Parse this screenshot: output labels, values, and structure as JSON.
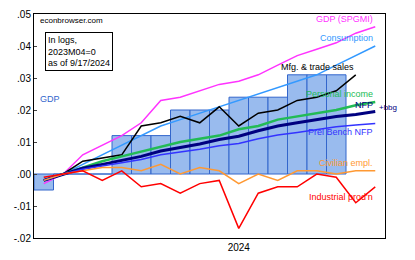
{
  "chart_data": {
    "type": "line",
    "annotations": [
      "econbrowser.com",
      "In logs,\n2023M04=0\nas of 9/17/2024",
      "+bbg"
    ],
    "categories": [
      null,
      null,
      null,
      null,
      null,
      null,
      null,
      null,
      null,
      null,
      "2024",
      null,
      null,
      null,
      null,
      null,
      null,
      null
    ],
    "series": [
      {
        "name": "GDP",
        "type": "bar",
        "color": "#99bbee",
        "values": [
          -0.005,
          0,
          0,
          0,
          0.012,
          0.012,
          0.012,
          0.02,
          0.02,
          0.02,
          0.024,
          0.024,
          0.024,
          0.031,
          0.031,
          0.031,
          null,
          null
        ]
      },
      {
        "name": "GDP (SPGMI)",
        "color": "#ff33ff",
        "values": [
          -0.003,
          0,
          0.006,
          0.009,
          0.012,
          0.016,
          0.023,
          0.024,
          0.026,
          0.028,
          0.029,
          0.031,
          0.034,
          0.037,
          0.039,
          0.041,
          0.044,
          0.046
        ]
      },
      {
        "name": "Consumption",
        "color": "#3399ff",
        "values": [
          -0.002,
          0,
          0.003,
          0.006,
          0.009,
          0.012,
          0.015,
          0.017,
          0.019,
          0.021,
          0.023,
          0.025,
          0.027,
          0.029,
          0.031,
          0.034,
          0.037,
          0.04
        ]
      },
      {
        "name": "Mfg. & trade sales",
        "color": "#000000",
        "values": [
          -0.002,
          0,
          0.004,
          0.005,
          0.006,
          0.015,
          0.016,
          0.018,
          0.016,
          0.021,
          0.015,
          0.019,
          0.02,
          0.023,
          0.024,
          0.026,
          0.031,
          null
        ]
      },
      {
        "name": "Personal income",
        "color": "#22bb55",
        "values": [
          -0.002,
          0,
          0.002,
          0.004,
          0.0055,
          0.007,
          0.0085,
          0.01,
          0.011,
          0.012,
          0.014,
          0.015,
          0.017,
          0.018,
          0.019,
          0.02,
          0.0215,
          0.0225
        ]
      },
      {
        "name": "NFP",
        "color": "#000080",
        "values": [
          -0.002,
          0,
          0.0018,
          0.003,
          0.0042,
          0.0055,
          0.0072,
          0.0082,
          0.0094,
          0.0108,
          0.0118,
          0.0135,
          0.015,
          0.016,
          0.0171,
          0.018,
          0.0186,
          0.0195
        ]
      },
      {
        "name": "Prel Bench NFP",
        "color": "#3333ff",
        "values": [
          -0.002,
          0,
          0.0015,
          0.0025,
          0.0035,
          0.0045,
          0.006,
          0.0068,
          0.0077,
          0.0088,
          0.0095,
          0.011,
          0.0122,
          0.013,
          0.014,
          0.0148,
          0.0153,
          0.0158
        ]
      },
      {
        "name": "Civilian empl.",
        "color": "#ff9933",
        "values": [
          -0.002,
          0,
          0.001,
          0.002,
          0.002,
          0.001,
          0.003,
          0.0,
          0.002,
          0.001,
          -0.003,
          0.0,
          -0.002,
          0.001,
          0.001,
          0.0,
          0.001,
          0.001
        ]
      },
      {
        "name": "Industrial prod'n",
        "color": "#ff0000",
        "values": [
          -0.001,
          0,
          0.001,
          -0.002,
          0.001,
          -0.004,
          -0.003,
          -0.006,
          -0.003,
          -0.002,
          -0.017,
          -0.006,
          -0.004,
          -0.004,
          0.0,
          -0.001,
          -0.009,
          -0.004
        ]
      }
    ],
    "ylim": [
      -0.02,
      0.05
    ],
    "yticks": [
      {
        "value": -0.02,
        "label": "-.02"
      },
      {
        "value": -0.01,
        "label": "-.01"
      },
      {
        "value": 0,
        "label": ".00"
      },
      {
        "value": 0.01,
        "label": ".01"
      },
      {
        "value": 0.02,
        "label": ".02"
      },
      {
        "value": 0.03,
        "label": ".03"
      },
      {
        "value": 0.04,
        "label": ".04"
      },
      {
        "value": 0.05,
        "label": ".05"
      }
    ],
    "grid": false
  }
}
